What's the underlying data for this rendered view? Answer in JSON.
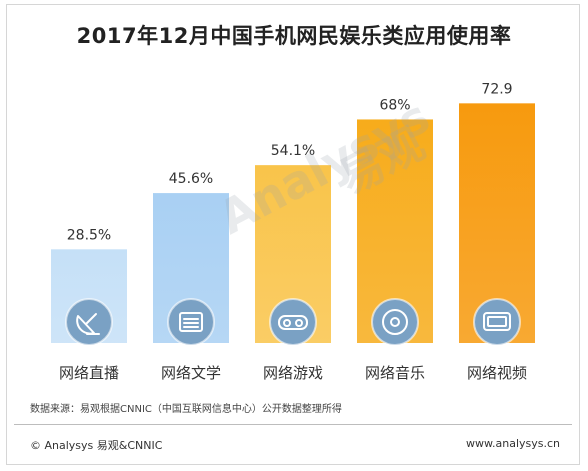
{
  "chart_data": {
    "type": "bar",
    "title": "2017年12月中国手机网民娱乐类应用使用率",
    "categories": [
      "网络直播",
      "网络文学",
      "网络游戏",
      "网络音乐",
      "网络视频"
    ],
    "values": [
      28.5,
      45.6,
      54.1,
      68,
      72.9
    ],
    "value_labels": [
      "28.5%",
      "45.6%",
      "54.1%",
      "68%",
      "72.9"
    ],
    "icons": [
      "satellite-dish-icon",
      "book-icon",
      "gamepad-icon",
      "cd-disc-icon",
      "tv-icon"
    ],
    "colors": [
      "#c5e0f7",
      "#a9d0f3",
      "#f9c44a",
      "#f7ac1b",
      "#f79a0e"
    ],
    "ylim": [
      0,
      80
    ],
    "grid": false
  },
  "source": "数据来源：易观根据CNNIC（中国互联网信息中心）公开数据整理所得",
  "footer": {
    "left": "© Analysys 易观&CNNIC",
    "right": "www.analysys.cn"
  },
  "watermark": {
    "brand": "Analysys",
    "brand_cn": "易观"
  }
}
